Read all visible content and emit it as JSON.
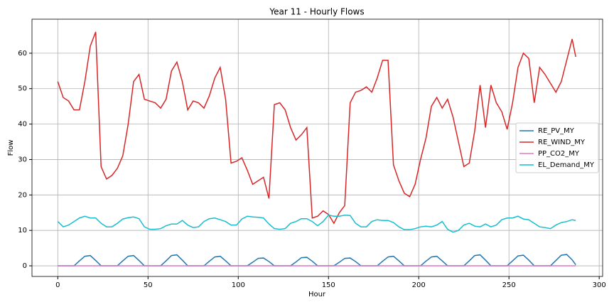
{
  "chart_data": {
    "type": "line",
    "title": "Year 11 - Hourly Flows",
    "x_label": "Hour",
    "y_label": "Flow",
    "x": [
      0,
      3,
      6,
      9,
      12,
      15,
      18,
      21,
      24,
      27,
      30,
      33,
      36,
      39,
      42,
      45,
      48,
      51,
      54,
      57,
      60,
      63,
      66,
      69,
      72,
      75,
      78,
      81,
      84,
      87,
      90,
      93,
      96,
      99,
      102,
      105,
      108,
      111,
      114,
      117,
      120,
      123,
      126,
      129,
      132,
      135,
      138,
      141,
      144,
      147,
      150,
      153,
      156,
      159,
      162,
      165,
      168,
      171,
      174,
      177,
      180,
      183,
      186,
      189,
      192,
      195,
      198,
      201,
      204,
      207,
      210,
      213,
      216,
      219,
      222,
      225,
      228,
      231,
      234,
      237,
      240,
      243,
      246,
      249,
      252,
      255,
      258,
      261,
      264,
      267,
      270,
      273,
      276,
      279,
      282,
      285,
      287
    ],
    "series": [
      {
        "name": "RE_PV_MY",
        "color": "#1f77b4",
        "values": [
          0,
          0,
          0,
          0,
          1.4,
          2.7,
          2.9,
          1.5,
          0,
          0,
          0,
          0,
          1.4,
          2.7,
          2.9,
          1.5,
          0,
          0,
          0,
          0,
          1.4,
          2.9,
          3.1,
          1.6,
          0,
          0,
          0,
          0,
          1.3,
          2.5,
          2.7,
          1.4,
          0,
          0,
          0,
          0,
          1.0,
          2.1,
          2.2,
          1.2,
          0,
          0,
          0,
          0,
          1.1,
          2.3,
          2.4,
          1.3,
          0,
          0,
          0,
          0,
          1.0,
          2.1,
          2.2,
          1.2,
          0,
          0,
          0,
          0,
          1.3,
          2.5,
          2.7,
          1.4,
          0,
          0,
          0,
          0,
          1.3,
          2.5,
          2.7,
          1.4,
          0,
          0,
          0,
          0,
          1.4,
          2.9,
          3.1,
          1.6,
          0,
          0,
          0,
          0,
          1.4,
          2.8,
          3.0,
          1.6,
          0,
          0,
          0,
          0,
          1.5,
          3.0,
          3.2,
          1.7,
          0.3
        ]
      },
      {
        "name": "RE_WIND_MY",
        "color": "#d62728",
        "values": [
          52,
          47.5,
          46.5,
          44,
          44,
          52,
          62,
          66,
          28,
          24.5,
          25.5,
          27.5,
          31,
          40,
          52,
          54,
          47,
          46.5,
          46,
          44.5,
          47,
          55,
          57.5,
          52,
          44,
          46.5,
          46,
          44.5,
          48,
          53,
          56,
          47,
          29,
          29.5,
          30.5,
          27,
          23,
          24,
          25,
          19,
          45.5,
          46,
          44,
          39,
          35.5,
          37,
          39,
          13.5,
          14,
          15.5,
          14.5,
          12,
          15,
          17,
          46,
          49,
          49.5,
          50.5,
          49,
          53,
          58,
          58,
          28.5,
          24,
          20.5,
          19.5,
          23,
          30,
          36,
          45,
          47.5,
          44.5,
          47,
          42,
          35,
          28,
          29,
          38,
          51,
          39,
          51,
          46,
          43.5,
          38.5,
          46,
          56,
          60,
          58.5,
          46,
          56,
          54,
          51.5,
          49,
          52,
          58,
          64,
          59
        ]
      },
      {
        "name": "PP_CO2_MY",
        "color": "#e377c2",
        "values": [
          0,
          0,
          0,
          0,
          0,
          0,
          0,
          0,
          0,
          0,
          0,
          0,
          0,
          0,
          0,
          0,
          0,
          0,
          0,
          0,
          0,
          0,
          0,
          0,
          0,
          0,
          0,
          0,
          0,
          0,
          0,
          0,
          0,
          0,
          0,
          0,
          0,
          0,
          0,
          0,
          0,
          0,
          0,
          0,
          0,
          0,
          0,
          0,
          0,
          0,
          0,
          0,
          0,
          0,
          0,
          0,
          0,
          0,
          0,
          0,
          0,
          0,
          0,
          0,
          0,
          0,
          0,
          0,
          0,
          0,
          0,
          0,
          0,
          0,
          0,
          0,
          0,
          0,
          0,
          0,
          0,
          0,
          0,
          0,
          0,
          0,
          0,
          0,
          0,
          0,
          0,
          0,
          0,
          0,
          0,
          0,
          0
        ]
      },
      {
        "name": "EL_Demand_MY",
        "color": "#17becf",
        "values": [
          12.5,
          11,
          11.5,
          12.5,
          13.5,
          14,
          13.5,
          13.5,
          12,
          11,
          11,
          12,
          13.2,
          13.6,
          13.8,
          13.3,
          11,
          10.3,
          10.3,
          10.5,
          11.3,
          11.8,
          11.8,
          12.8,
          11.5,
          10.8,
          11,
          12.5,
          13.3,
          13.5,
          13,
          12.5,
          11.5,
          11.5,
          13.2,
          14,
          13.8,
          13.7,
          13.5,
          11.8,
          10.5,
          10.3,
          10.5,
          12,
          12.5,
          13.3,
          13.3,
          12.5,
          11.3,
          12.5,
          14.3,
          14,
          14,
          14.3,
          14.2,
          12,
          11,
          11,
          12.5,
          13,
          12.8,
          12.8,
          12.2,
          11,
          10.2,
          10.2,
          10.5,
          11,
          11.2,
          11,
          11.5,
          12.5,
          10.3,
          9.5,
          10,
          11.5,
          12,
          11.2,
          11,
          11.8,
          11,
          11.5,
          13,
          13.5,
          13.5,
          14,
          13.2,
          13,
          12,
          11,
          10.8,
          10.5,
          11.5,
          12.2,
          12.5,
          13,
          12.8
        ]
      }
    ],
    "xlim": [
      -14.3,
      301.9
    ],
    "ylim": [
      -3.0,
      69.6
    ],
    "xticks": [
      0,
      50,
      100,
      150,
      200,
      250,
      300
    ],
    "yticks": [
      0,
      10,
      20,
      30,
      40,
      50,
      60
    ],
    "grid": true,
    "legend_position": "center right"
  }
}
